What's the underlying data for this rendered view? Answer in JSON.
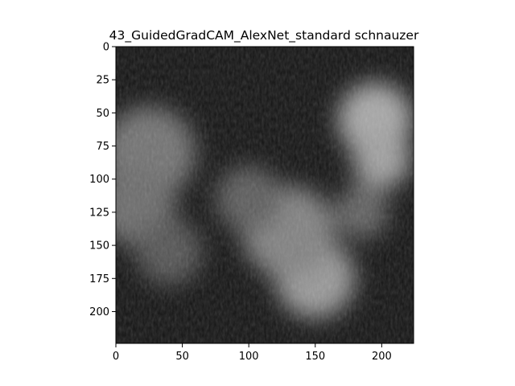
{
  "chart_data": {
    "type": "heatmap",
    "title": "43_GuidedGradCAM_AlexNet_standard schnauzer",
    "xlabel": "",
    "ylabel": "",
    "xlim": [
      0,
      224
    ],
    "ylim": [
      224,
      0
    ],
    "x_ticks": [
      0,
      50,
      100,
      150,
      200
    ],
    "y_ticks": [
      0,
      25,
      50,
      75,
      100,
      125,
      150,
      175,
      200
    ],
    "grid": false,
    "colormap": "grayscale saliency overlay",
    "hotspots": [
      {
        "x": 195,
        "y": 55,
        "radius": 28,
        "intensity": 0.85
      },
      {
        "x": 200,
        "y": 85,
        "radius": 22,
        "intensity": 0.8
      },
      {
        "x": 150,
        "y": 175,
        "radius": 30,
        "intensity": 0.75
      },
      {
        "x": 130,
        "y": 140,
        "radius": 35,
        "intensity": 0.6
      },
      {
        "x": 25,
        "y": 80,
        "radius": 35,
        "intensity": 0.5
      },
      {
        "x": 15,
        "y": 120,
        "radius": 30,
        "intensity": 0.45
      },
      {
        "x": 100,
        "y": 115,
        "radius": 25,
        "intensity": 0.35
      },
      {
        "x": 40,
        "y": 155,
        "radius": 25,
        "intensity": 0.3
      },
      {
        "x": 185,
        "y": 125,
        "radius": 20,
        "intensity": 0.4
      }
    ]
  }
}
